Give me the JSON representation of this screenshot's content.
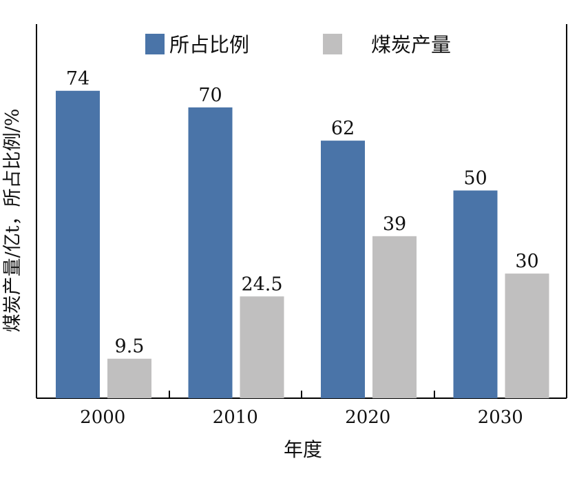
{
  "chart_data": {
    "type": "bar",
    "categories": [
      "2000",
      "2010",
      "2020",
      "2030"
    ],
    "series": [
      {
        "name": "所占比例",
        "values": [
          74,
          70,
          62,
          50
        ],
        "labels": [
          "74",
          "70",
          "62",
          "50"
        ],
        "color": "#4a74a8"
      },
      {
        "name": "煤炭产量",
        "values": [
          9.5,
          24.5,
          39,
          30
        ],
        "labels": [
          "9.5",
          "24.5",
          "39",
          "30"
        ],
        "color": "#c0bfbf"
      }
    ],
    "title": "",
    "xlabel": "年度",
    "ylabel": "煤炭产量/亿t，所占比例/%",
    "legend_position": "top",
    "grid": false
  }
}
